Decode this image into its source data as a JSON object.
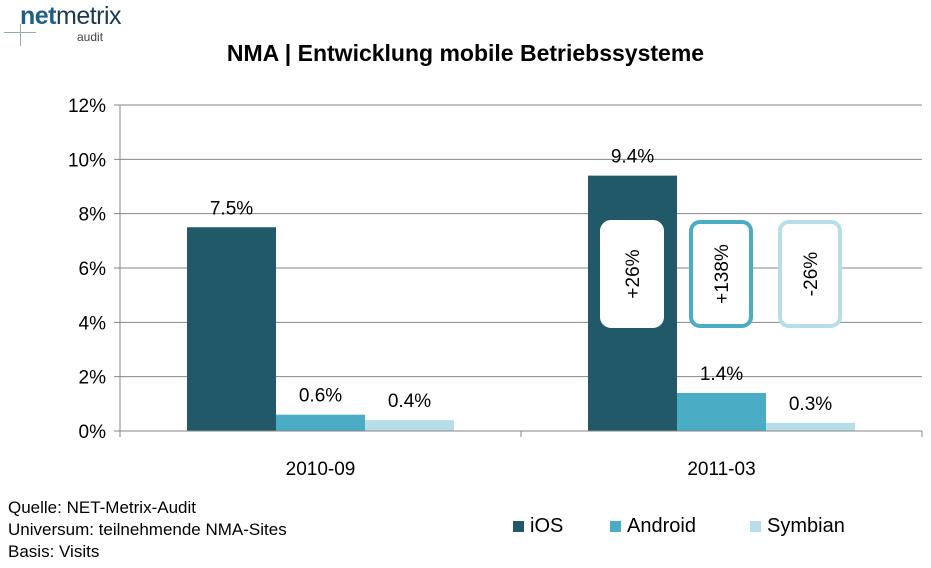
{
  "logo": {
    "net": "net",
    "metrix": "metrix",
    "sub": "audit"
  },
  "chart_data": {
    "type": "bar",
    "title": "NMA | Entwicklung mobile Betriebssysteme",
    "categories": [
      "2010-09",
      "2011-03"
    ],
    "series": [
      {
        "name": "iOS",
        "values": [
          7.5,
          9.4
        ],
        "labels": [
          "7.5%",
          "9.4%"
        ],
        "color": "#215968"
      },
      {
        "name": "Android",
        "values": [
          0.6,
          1.4
        ],
        "labels": [
          "0.6%",
          "1.4%"
        ],
        "color": "#4bacc6"
      },
      {
        "name": "Symbian",
        "values": [
          0.4,
          0.3
        ],
        "labels": [
          "0.4%",
          "0.3%"
        ],
        "color": "#b7dee8"
      }
    ],
    "ylim": [
      0,
      12
    ],
    "yticks": [
      0,
      2,
      4,
      6,
      8,
      10,
      12
    ],
    "ytick_labels": [
      "0%",
      "2%",
      "4%",
      "6%",
      "8%",
      "10%",
      "12%"
    ],
    "grid": true,
    "legend_position": "bottom-right",
    "annotations": [
      {
        "text": "+26%",
        "series": "iOS",
        "border": "#ffffff"
      },
      {
        "text": "+138%",
        "series": "Android",
        "border": "#4bacc6"
      },
      {
        "text": "-26%",
        "series": "Symbian",
        "border": "#b7dee8"
      }
    ]
  },
  "source": {
    "line1": "Quelle: NET-Metrix-Audit",
    "line2": "Universum: teilnehmende NMA-Sites",
    "line3": "Basis: Visits"
  }
}
